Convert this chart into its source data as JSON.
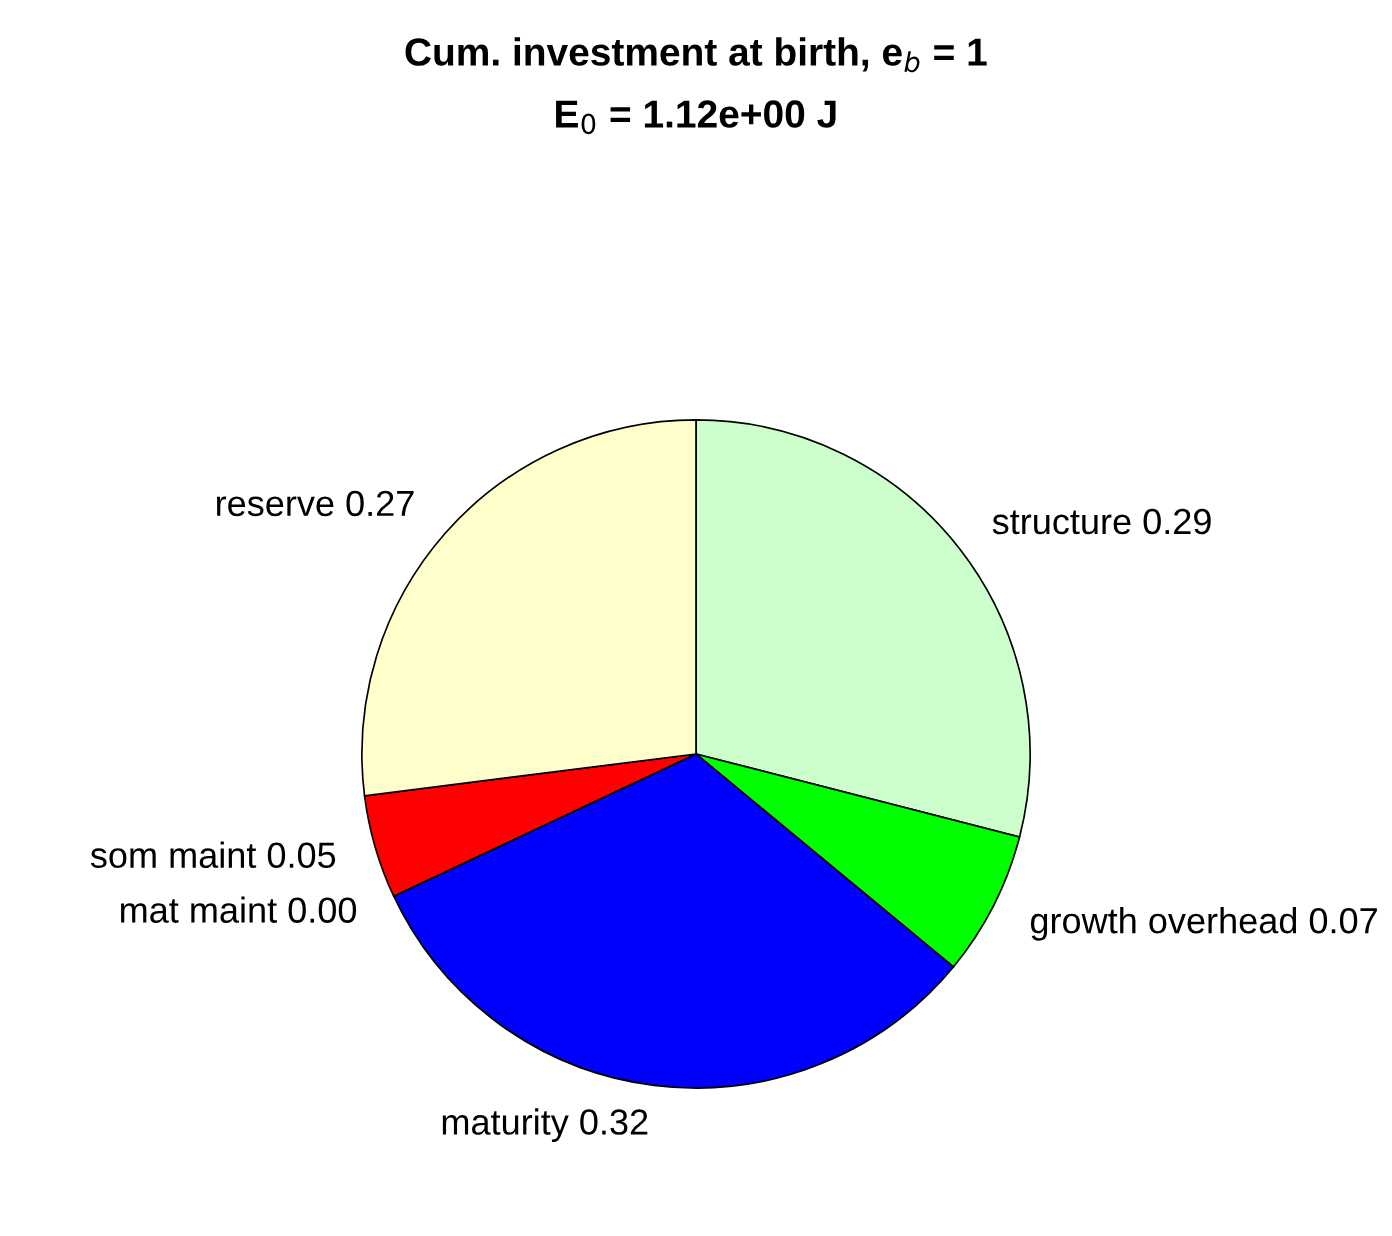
{
  "chart_data": {
    "type": "pie",
    "title": "Cum. investment at birth, e$_{b}$ = 1",
    "subtitle": "E$_{0}$ = 1.12e+00 J",
    "categories": [
      "structure",
      "growth overhead",
      "maturity",
      "mat maint",
      "som maint",
      "reserve"
    ],
    "values": [
      0.29,
      0.07,
      0.32,
      0.0,
      0.05,
      0.27
    ],
    "value_labels": [
      "0.29",
      "0.07",
      "0.32",
      "0.00",
      "0.05",
      "0.27"
    ],
    "colors": [
      "#ccffcc",
      "#00ff00",
      "#0000ff",
      "#cc00cc",
      "#ff0000",
      "#ffffcc"
    ]
  }
}
